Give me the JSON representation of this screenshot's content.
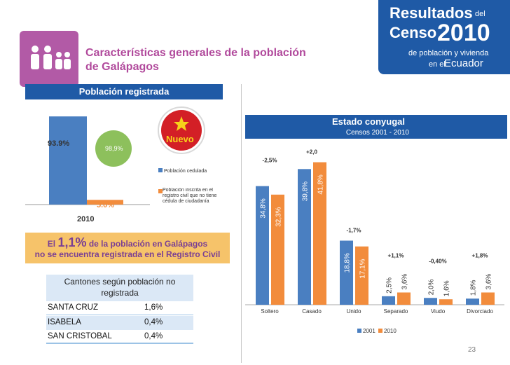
{
  "header": {
    "title_line1": "Características generales de la población",
    "title_line2": "de Galápagos",
    "banner": {
      "resultados": "Resultados",
      "del": "del",
      "censo": "Censo",
      "year": "2010",
      "sub1": "de población y vivienda",
      "sub2": "en el",
      "country": "Ecuador"
    }
  },
  "left_panel": {
    "heading": "Población registrada",
    "badge": "Nuevo",
    "note_prefix": "El",
    "note_big": "1,1%",
    "note_rest": "de la población en Galápagos",
    "note_line2": "no se encuentra registrada en el Registro Civil",
    "table": {
      "title": "Cantones según población no registrada",
      "rows": [
        {
          "canton": "SANTA CRUZ",
          "value": "1,6%"
        },
        {
          "canton": "ISABELA",
          "value": "0,4%"
        },
        {
          "canton": "SAN CRISTOBAL",
          "value": "0,4%"
        }
      ]
    }
  },
  "right_panel": {
    "title": "Estado conyugal",
    "subtitle": "Censos 2001 - 2010"
  },
  "page_number": "23",
  "chart_data": [
    {
      "type": "bar",
      "categories": [
        "2010"
      ],
      "series": [
        {
          "name": "Población cedulada",
          "values": [
            93.9
          ],
          "labels": [
            "93.9%"
          ],
          "color": "#4a7fc1"
        },
        {
          "name": "Población inscrita en el registro civil que no tiene cédula de ciudadanía",
          "values": [
            5.0
          ],
          "labels": [
            "5.0%"
          ],
          "color": "#f28c3c"
        }
      ],
      "bubble_label": "98,9%",
      "ylim": [
        0,
        100
      ]
    },
    {
      "type": "bar",
      "categories": [
        "Soltero",
        "Casado",
        "Unido",
        "Separado",
        "Viudo",
        "Divorciado"
      ],
      "series": [
        {
          "name": "2001",
          "values": [
            34.8,
            39.8,
            18.8,
            2.5,
            2.0,
            1.8
          ],
          "labels": [
            "34,8%",
            "39,8%",
            "18,8%",
            "2,5%",
            "2,0%",
            "1,8%"
          ],
          "color": "#4a7fc1"
        },
        {
          "name": "2010",
          "values": [
            32.3,
            41.8,
            17.1,
            3.6,
            1.6,
            3.6
          ],
          "labels": [
            "32,3%",
            "41,8%",
            "17,1%",
            "3,6%",
            "1,6%",
            "3,6%"
          ],
          "color": "#f28c3c"
        }
      ],
      "changes": [
        "-2,5%",
        "+2,0",
        "-1,7%",
        "+1,1%",
        "-0,40%",
        "+1,8%"
      ],
      "ylim": [
        0,
        45
      ]
    }
  ],
  "colors": {
    "brand_blue": "#1f5aa6",
    "purple": "#b14a9c",
    "orange": "#f28c3c",
    "bar_blue": "#4a7fc1",
    "note_bg": "#f6c36a"
  }
}
